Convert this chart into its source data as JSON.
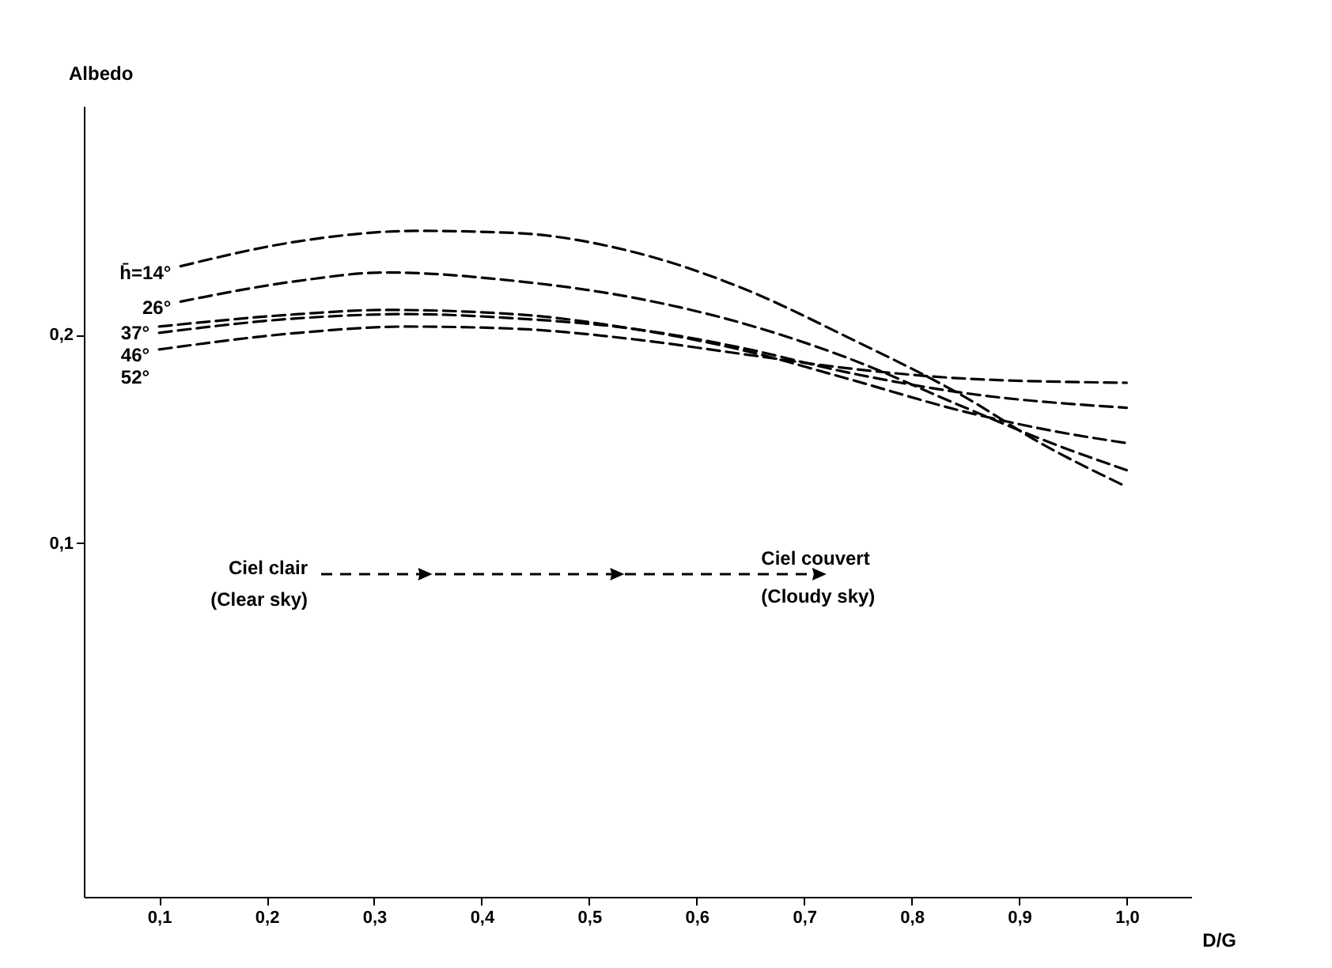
{
  "chart_data": {
    "type": "line",
    "xlabel": "D/G",
    "ylabel": "Albedo",
    "xlim": [
      0.03,
      1.06
    ],
    "ylim": [
      -0.07,
      0.31
    ],
    "xticks": [
      {
        "value": 0.1,
        "label": "0,1"
      },
      {
        "value": 0.2,
        "label": "0,2"
      },
      {
        "value": 0.3,
        "label": "0,3"
      },
      {
        "value": 0.4,
        "label": "0,4"
      },
      {
        "value": 0.5,
        "label": "0,5"
      },
      {
        "value": 0.6,
        "label": "0,6"
      },
      {
        "value": 0.7,
        "label": "0,7"
      },
      {
        "value": 0.8,
        "label": "0,8"
      },
      {
        "value": 0.9,
        "label": "0,9"
      },
      {
        "value": 1.0,
        "label": "1,0"
      }
    ],
    "yticks": [
      {
        "value": 0.1,
        "label": "0,1"
      },
      {
        "value": 0.2,
        "label": "0,2"
      }
    ],
    "grid": false,
    "legend": false,
    "marker": "none",
    "line_style": "dashed",
    "series": [
      {
        "name": "h̄=14°",
        "color": "#000000",
        "x": [
          0.12,
          0.23,
          0.34,
          0.43,
          0.54,
          0.64,
          0.74,
          0.85,
          0.92,
          1.0
        ],
        "values": [
          0.233,
          0.245,
          0.25,
          0.249,
          0.24,
          0.223,
          0.199,
          0.17,
          0.148,
          0.127
        ]
      },
      {
        "name": "26°",
        "color": "#000000",
        "x": [
          0.12,
          0.23,
          0.31,
          0.43,
          0.54,
          0.64,
          0.74,
          0.85,
          0.93,
          1.0
        ],
        "values": [
          0.216,
          0.226,
          0.23,
          0.226,
          0.218,
          0.206,
          0.189,
          0.165,
          0.148,
          0.135
        ]
      },
      {
        "name": "37°",
        "color": "#000000",
        "x": [
          0.1,
          0.23,
          0.31,
          0.43,
          0.54,
          0.64,
          0.74,
          0.85,
          0.93,
          1.0
        ],
        "values": [
          0.204,
          0.21,
          0.212,
          0.21,
          0.203,
          0.193,
          0.179,
          0.163,
          0.154,
          0.148
        ]
      },
      {
        "name": "46°",
        "color": "#000000",
        "x": [
          0.1,
          0.23,
          0.33,
          0.43,
          0.54,
          0.64,
          0.74,
          0.85,
          1.0
        ],
        "values": [
          0.201,
          0.208,
          0.21,
          0.208,
          0.203,
          0.194,
          0.182,
          0.172,
          0.165
        ]
      },
      {
        "name": "52°",
        "color": "#000000",
        "x": [
          0.1,
          0.23,
          0.33,
          0.43,
          0.54,
          0.64,
          0.74,
          0.85,
          1.0
        ],
        "values": [
          0.193,
          0.201,
          0.204,
          0.203,
          0.198,
          0.191,
          0.184,
          0.179,
          0.177
        ]
      }
    ],
    "annotations": [
      "Ciel clair",
      "(Clear sky)",
      "Ciel couvert",
      "(Cloudy sky)"
    ]
  }
}
